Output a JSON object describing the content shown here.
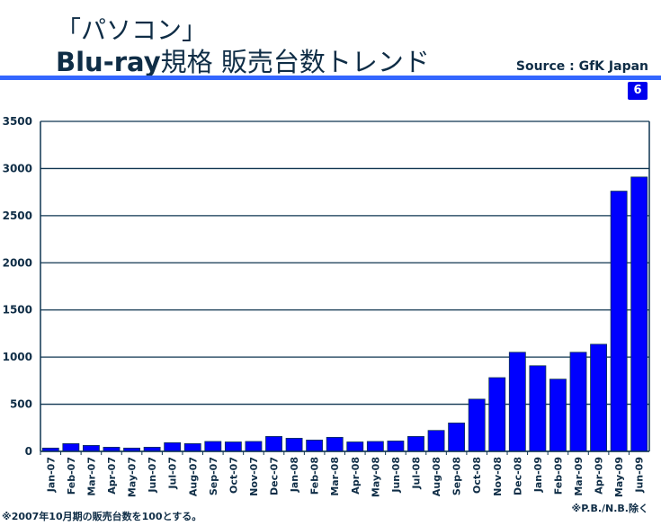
{
  "header": {
    "title_line1": "「パソコン」",
    "title_line2_bold": "Blu-ray",
    "title_line2_rest": "規格 販売台数トレンド",
    "source": "Source : GfK Japan",
    "page_number": "6"
  },
  "footnotes": {
    "left": "※2007年10月期の販売台数を100とする。",
    "right": "※P.B./N.B.除く"
  },
  "colors": {
    "bar": "#0000ff",
    "grid": "#0f3550",
    "rule": "#3366ff"
  },
  "chart_data": {
    "type": "bar",
    "title": "「パソコン」Blu-ray規格 販売台数トレンド",
    "xlabel": "",
    "ylabel": "",
    "ylim": [
      0,
      3500
    ],
    "yticks": [
      0,
      500,
      1000,
      1500,
      2000,
      2500,
      3000,
      3500
    ],
    "grid": true,
    "categories": [
      "Jan-07",
      "Feb-07",
      "Mar-07",
      "Apr-07",
      "May-07",
      "Jun-07",
      "Jul-07",
      "Aug-07",
      "Sep-07",
      "Oct-07",
      "Nov-07",
      "Dec-07",
      "Jan-08",
      "Feb-08",
      "Mar-08",
      "Apr-08",
      "May-08",
      "Jun-08",
      "Jul-08",
      "Aug-08",
      "Sep-08",
      "Oct-08",
      "Nov-08",
      "Dec-08",
      "Jan-09",
      "Feb-09",
      "Mar-09",
      "Apr-09",
      "May-09",
      "Jun-09"
    ],
    "values": [
      35,
      82,
      63,
      44,
      35,
      44,
      92,
      82,
      105,
      100,
      105,
      158,
      139,
      120,
      149,
      100,
      105,
      110,
      158,
      222,
      301,
      554,
      782,
      1051,
      908,
      766,
      1051,
      1136,
      2760,
      2910
    ]
  }
}
